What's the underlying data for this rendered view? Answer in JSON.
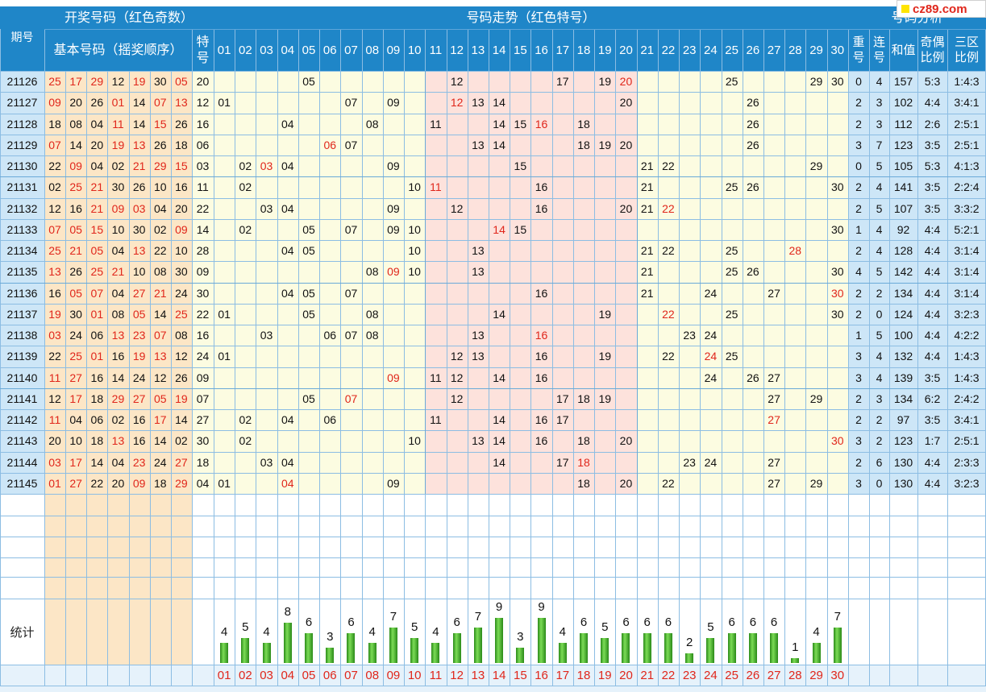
{
  "header": {
    "col_period": "期号",
    "group_draw": "开奖号码（红色奇数）",
    "group_basic": "基本号码（摇奖顺序）",
    "group_special": "特号",
    "group_trend": "号码走势（红色特号）",
    "group_analysis": "号码分析",
    "col_repeat": "重号",
    "col_consecutive": "连号",
    "col_sum": "和值",
    "col_odd_even": "奇偶比例",
    "col_three_zone": "三区比例",
    "stats_label": "统计"
  },
  "logo": {
    "text": "cz89.com"
  },
  "numbers": [
    "01",
    "02",
    "03",
    "04",
    "05",
    "06",
    "07",
    "08",
    "09",
    "10",
    "11",
    "12",
    "13",
    "14",
    "15",
    "16",
    "17",
    "18",
    "19",
    "20",
    "21",
    "22",
    "23",
    "24",
    "25",
    "26",
    "27",
    "28",
    "29",
    "30"
  ],
  "rows": [
    {
      "period": "21126",
      "basic": [
        "25",
        "17",
        "29",
        "12",
        "19",
        "30",
        "05"
      ],
      "special": "20",
      "repeat": "0",
      "consec": "4",
      "sum": "157",
      "oddeven": "5:3",
      "zone": "1:4:3"
    },
    {
      "period": "21127",
      "basic": [
        "09",
        "20",
        "26",
        "01",
        "14",
        "07",
        "13"
      ],
      "special": "12",
      "repeat": "2",
      "consec": "3",
      "sum": "102",
      "oddeven": "4:4",
      "zone": "3:4:1"
    },
    {
      "period": "21128",
      "basic": [
        "18",
        "08",
        "04",
        "11",
        "14",
        "15",
        "26"
      ],
      "special": "16",
      "repeat": "2",
      "consec": "3",
      "sum": "112",
      "oddeven": "2:6",
      "zone": "2:5:1"
    },
    {
      "period": "21129",
      "basic": [
        "07",
        "14",
        "20",
        "19",
        "13",
        "26",
        "18"
      ],
      "special": "06",
      "repeat": "3",
      "consec": "7",
      "sum": "123",
      "oddeven": "3:5",
      "zone": "2:5:1"
    },
    {
      "period": "21130",
      "basic": [
        "22",
        "09",
        "04",
        "02",
        "21",
        "29",
        "15"
      ],
      "special": "03",
      "repeat": "0",
      "consec": "5",
      "sum": "105",
      "oddeven": "5:3",
      "zone": "4:1:3"
    },
    {
      "period": "21131",
      "basic": [
        "02",
        "25",
        "21",
        "30",
        "26",
        "10",
        "16"
      ],
      "special": "11",
      "repeat": "2",
      "consec": "4",
      "sum": "141",
      "oddeven": "3:5",
      "zone": "2:2:4"
    },
    {
      "period": "21132",
      "basic": [
        "12",
        "16",
        "21",
        "09",
        "03",
        "04",
        "20"
      ],
      "special": "22",
      "repeat": "2",
      "consec": "5",
      "sum": "107",
      "oddeven": "3:5",
      "zone": "3:3:2"
    },
    {
      "period": "21133",
      "basic": [
        "07",
        "05",
        "15",
        "10",
        "30",
        "02",
        "09"
      ],
      "special": "14",
      "repeat": "1",
      "consec": "4",
      "sum": "92",
      "oddeven": "4:4",
      "zone": "5:2:1"
    },
    {
      "period": "21134",
      "basic": [
        "25",
        "21",
        "05",
        "04",
        "13",
        "22",
        "10"
      ],
      "special": "28",
      "repeat": "2",
      "consec": "4",
      "sum": "128",
      "oddeven": "4:4",
      "zone": "3:1:4"
    },
    {
      "period": "21135",
      "basic": [
        "13",
        "26",
        "25",
        "21",
        "10",
        "08",
        "30"
      ],
      "special": "09",
      "repeat": "4",
      "consec": "5",
      "sum": "142",
      "oddeven": "4:4",
      "zone": "3:1:4"
    },
    {
      "period": "21136",
      "basic": [
        "16",
        "05",
        "07",
        "04",
        "27",
        "21",
        "24"
      ],
      "special": "30",
      "repeat": "2",
      "consec": "2",
      "sum": "134",
      "oddeven": "4:4",
      "zone": "3:1:4"
    },
    {
      "period": "21137",
      "basic": [
        "19",
        "30",
        "01",
        "08",
        "05",
        "14",
        "25"
      ],
      "special": "22",
      "repeat": "2",
      "consec": "0",
      "sum": "124",
      "oddeven": "4:4",
      "zone": "3:2:3"
    },
    {
      "period": "21138",
      "basic": [
        "03",
        "24",
        "06",
        "13",
        "23",
        "07",
        "08"
      ],
      "special": "16",
      "repeat": "1",
      "consec": "5",
      "sum": "100",
      "oddeven": "4:4",
      "zone": "4:2:2"
    },
    {
      "period": "21139",
      "basic": [
        "22",
        "25",
        "01",
        "16",
        "19",
        "13",
        "12"
      ],
      "special": "24",
      "repeat": "3",
      "consec": "4",
      "sum": "132",
      "oddeven": "4:4",
      "zone": "1:4:3"
    },
    {
      "period": "21140",
      "basic": [
        "11",
        "27",
        "16",
        "14",
        "24",
        "12",
        "26"
      ],
      "special": "09",
      "repeat": "3",
      "consec": "4",
      "sum": "139",
      "oddeven": "3:5",
      "zone": "1:4:3"
    },
    {
      "period": "21141",
      "basic": [
        "12",
        "17",
        "18",
        "29",
        "27",
        "05",
        "19"
      ],
      "special": "07",
      "repeat": "2",
      "consec": "3",
      "sum": "134",
      "oddeven": "6:2",
      "zone": "2:4:2"
    },
    {
      "period": "21142",
      "basic": [
        "11",
        "04",
        "06",
        "02",
        "16",
        "17",
        "14"
      ],
      "special": "27",
      "repeat": "2",
      "consec": "2",
      "sum": "97",
      "oddeven": "3:5",
      "zone": "3:4:1"
    },
    {
      "period": "21143",
      "basic": [
        "20",
        "10",
        "18",
        "13",
        "16",
        "14",
        "02"
      ],
      "special": "30",
      "repeat": "3",
      "consec": "2",
      "sum": "123",
      "oddeven": "1:7",
      "zone": "2:5:1"
    },
    {
      "period": "21144",
      "basic": [
        "03",
        "17",
        "14",
        "04",
        "23",
        "24",
        "27"
      ],
      "special": "18",
      "repeat": "2",
      "consec": "6",
      "sum": "130",
      "oddeven": "4:4",
      "zone": "2:3:3"
    },
    {
      "period": "21145",
      "basic": [
        "01",
        "27",
        "22",
        "20",
        "09",
        "18",
        "29"
      ],
      "special": "04",
      "repeat": "3",
      "consec": "0",
      "sum": "130",
      "oddeven": "4:4",
      "zone": "3:2:3"
    }
  ],
  "colors": {
    "header_blue": "#1f86c8",
    "odd_red": "#e0261b",
    "cell_yellow": "#fcfce1",
    "cell_pink": "#fde2dc",
    "cell_orange": "#fce6c6",
    "cell_blue": "#cde6f7",
    "bar_green": "#3fae2a"
  },
  "chart_data": {
    "type": "bar",
    "categories": [
      "01",
      "02",
      "03",
      "04",
      "05",
      "06",
      "07",
      "08",
      "09",
      "10",
      "11",
      "12",
      "13",
      "14",
      "15",
      "16",
      "17",
      "18",
      "19",
      "20",
      "21",
      "22",
      "23",
      "24",
      "25",
      "26",
      "27",
      "28",
      "29",
      "30"
    ],
    "values": [
      4,
      5,
      4,
      8,
      6,
      3,
      6,
      4,
      7,
      5,
      4,
      6,
      7,
      9,
      3,
      9,
      4,
      6,
      5,
      6,
      6,
      6,
      2,
      5,
      6,
      6,
      6,
      1,
      4,
      7
    ],
    "ylim": [
      0,
      9
    ]
  }
}
